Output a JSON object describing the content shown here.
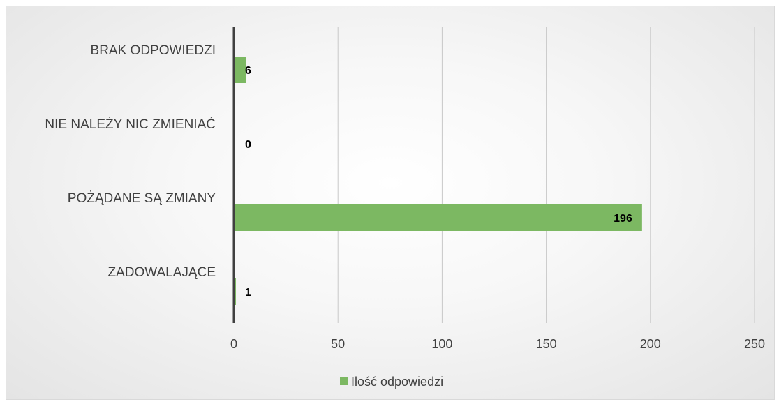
{
  "chart_data": {
    "type": "bar",
    "orientation": "horizontal",
    "categories": [
      "BRAK ODPOWIEDZI",
      "NIE NALEŻY NIC ZMIENIAĆ",
      "POŻĄDANE SĄ ZMIANY",
      "ZADOWALAJĄCE"
    ],
    "series": [
      {
        "name": "Ilość odpowiedzi",
        "values": [
          6,
          0,
          196,
          1
        ],
        "color": "#7cb862"
      }
    ],
    "xlim": [
      0,
      250
    ],
    "xticks": [
      0,
      50,
      100,
      150,
      200,
      250
    ],
    "xtick_labels": [
      "0",
      "50",
      "100",
      "150",
      "200",
      "250"
    ],
    "grid": true,
    "data_labels": true,
    "legend_position": "bottom"
  }
}
